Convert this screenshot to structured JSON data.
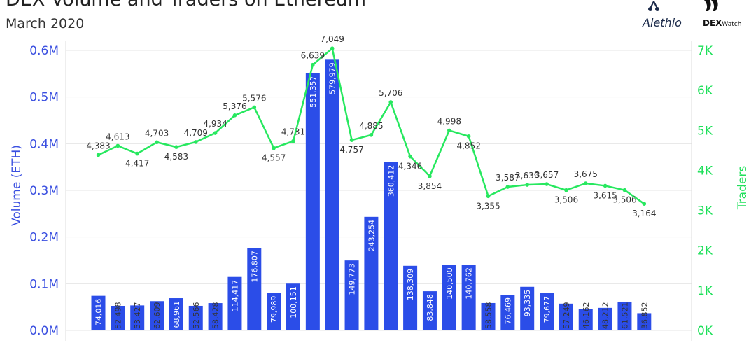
{
  "header": {
    "title": "DEX Volume and Traders on Ethereum",
    "subtitle": "March 2020"
  },
  "logos": {
    "alethio": "Alethio",
    "dexwatch_bold": "DEX",
    "dexwatch_rest": "Watch"
  },
  "colors": {
    "bars": "#2b4de8",
    "line": "#27e85f",
    "left_axis": "#3a4fe0",
    "right_axis": "#1ee05a"
  },
  "chart_data": {
    "type": "bar",
    "ylabel": "Volume (ETH)",
    "y2label": "Traders",
    "ylim": [
      0,
      600000
    ],
    "y2lim": [
      0,
      7000
    ],
    "yticks": [
      0,
      100000,
      200000,
      300000,
      400000,
      500000,
      600000
    ],
    "ytick_labels": [
      "0.0M",
      "0.1M",
      "0.2M",
      "0.3M",
      "0.4M",
      "0.5M",
      "0.6M"
    ],
    "y2ticks": [
      0,
      1000,
      2000,
      3000,
      4000,
      5000,
      6000,
      7000
    ],
    "y2tick_labels": [
      "0K",
      "1K",
      "2K",
      "3K",
      "4K",
      "5K",
      "6K",
      "7K"
    ],
    "grid": true,
    "series": [
      {
        "type": "bar",
        "axis": "left",
        "values": [
          74016,
          52498,
          53427,
          62609,
          68961,
          52566,
          58428,
          114417,
          176807,
          79989,
          100151,
          551357,
          579979,
          149773,
          243254,
          360412,
          138309,
          83848,
          140500,
          140762,
          58558,
          76469,
          93335,
          79677,
          57249,
          46162,
          48212,
          61521,
          36852
        ],
        "labels": [
          "74,016",
          "52,498",
          "53,427",
          "62,609",
          "68,961",
          "52,566",
          "58,428",
          "114,417",
          "176,807",
          "79,989",
          "100,151",
          "551,357",
          "579,979",
          "149,773",
          "243,254",
          "360,412",
          "138,309",
          "83,848",
          "140,500",
          "140,762",
          "58,558",
          "76,469",
          "93,335",
          "79,677",
          "57,249",
          "46,162",
          "48,212",
          "61,521",
          "36,852"
        ]
      },
      {
        "type": "line",
        "axis": "right",
        "values": [
          4383,
          4613,
          4417,
          4703,
          4583,
          4709,
          4934,
          5376,
          5576,
          4557,
          4731,
          6639,
          7049,
          4757,
          4885,
          5706,
          4346,
          3854,
          4998,
          4852,
          3355,
          3587,
          3639,
          3657,
          3506,
          3675,
          3615,
          3506,
          3164
        ],
        "labels": [
          "4,383",
          "4,613",
          "4,417",
          "4,703",
          "4,583",
          "4,709",
          "4,934",
          "5,376",
          "5,576",
          "4,557",
          "4,731",
          "6,639",
          "7,049",
          "4,757",
          "4,885",
          "5,706",
          "4,346",
          "3,854",
          "4,998",
          "4,852",
          "3,355",
          "3,587",
          "3,639",
          "3,657",
          "3,506",
          "3,675",
          "3,615",
          "3,506",
          "3,164"
        ]
      }
    ]
  }
}
